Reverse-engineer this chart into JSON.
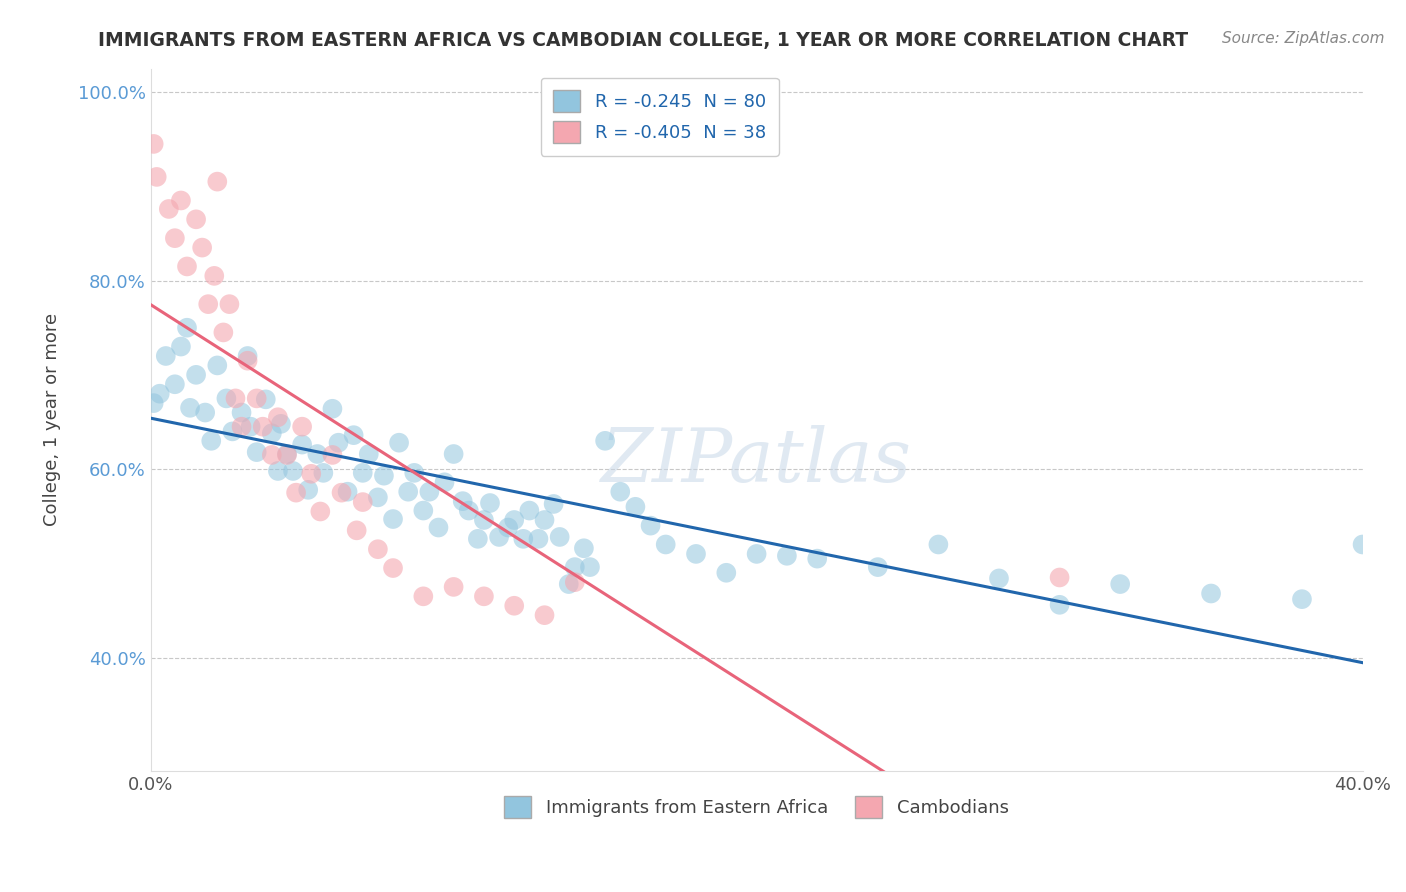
{
  "title": "IMMIGRANTS FROM EASTERN AFRICA VS CAMBODIAN COLLEGE, 1 YEAR OR MORE CORRELATION CHART",
  "source": "Source: ZipAtlas.com",
  "ylabel": "College, 1 year or more",
  "xlim": [
    0.0,
    0.4
  ],
  "ylim": [
    0.28,
    1.025
  ],
  "legend1_label": "R = -0.245  N = 80",
  "legend2_label": "R = -0.405  N = 38",
  "blue_color": "#92c5de",
  "pink_color": "#f4a7b0",
  "blue_line_color": "#2166ac",
  "pink_line_color": "#e8647a",
  "blue_scatter_x": [
    0.001,
    0.003,
    0.005,
    0.008,
    0.01,
    0.012,
    0.013,
    0.015,
    0.018,
    0.02,
    0.022,
    0.025,
    0.027,
    0.03,
    0.032,
    0.033,
    0.035,
    0.038,
    0.04,
    0.042,
    0.043,
    0.045,
    0.047,
    0.05,
    0.052,
    0.055,
    0.057,
    0.06,
    0.062,
    0.065,
    0.067,
    0.07,
    0.072,
    0.075,
    0.077,
    0.08,
    0.082,
    0.085,
    0.087,
    0.09,
    0.092,
    0.095,
    0.097,
    0.1,
    0.103,
    0.105,
    0.108,
    0.11,
    0.112,
    0.115,
    0.118,
    0.12,
    0.123,
    0.125,
    0.128,
    0.13,
    0.133,
    0.135,
    0.138,
    0.14,
    0.143,
    0.145,
    0.15,
    0.155,
    0.16,
    0.165,
    0.17,
    0.18,
    0.19,
    0.2,
    0.21,
    0.22,
    0.24,
    0.26,
    0.28,
    0.3,
    0.32,
    0.35,
    0.38,
    0.4
  ],
  "blue_scatter_y": [
    0.67,
    0.68,
    0.72,
    0.69,
    0.73,
    0.75,
    0.665,
    0.7,
    0.66,
    0.63,
    0.71,
    0.675,
    0.64,
    0.66,
    0.72,
    0.645,
    0.618,
    0.674,
    0.638,
    0.598,
    0.648,
    0.616,
    0.598,
    0.626,
    0.578,
    0.616,
    0.596,
    0.664,
    0.628,
    0.576,
    0.636,
    0.596,
    0.616,
    0.57,
    0.593,
    0.547,
    0.628,
    0.576,
    0.596,
    0.556,
    0.576,
    0.538,
    0.586,
    0.616,
    0.566,
    0.556,
    0.526,
    0.546,
    0.564,
    0.528,
    0.538,
    0.546,
    0.526,
    0.556,
    0.526,
    0.546,
    0.563,
    0.528,
    0.478,
    0.496,
    0.516,
    0.496,
    0.63,
    0.576,
    0.56,
    0.54,
    0.52,
    0.51,
    0.49,
    0.51,
    0.508,
    0.505,
    0.496,
    0.52,
    0.484,
    0.456,
    0.478,
    0.468,
    0.462,
    0.52
  ],
  "pink_scatter_x": [
    0.001,
    0.002,
    0.006,
    0.008,
    0.01,
    0.012,
    0.015,
    0.017,
    0.019,
    0.021,
    0.022,
    0.024,
    0.026,
    0.028,
    0.03,
    0.032,
    0.035,
    0.037,
    0.04,
    0.042,
    0.045,
    0.048,
    0.05,
    0.053,
    0.056,
    0.06,
    0.063,
    0.068,
    0.07,
    0.075,
    0.08,
    0.09,
    0.1,
    0.11,
    0.12,
    0.13,
    0.14,
    0.3
  ],
  "pink_scatter_y": [
    0.945,
    0.91,
    0.876,
    0.845,
    0.885,
    0.815,
    0.865,
    0.835,
    0.775,
    0.805,
    0.905,
    0.745,
    0.775,
    0.675,
    0.645,
    0.715,
    0.675,
    0.645,
    0.615,
    0.655,
    0.615,
    0.575,
    0.645,
    0.595,
    0.555,
    0.615,
    0.575,
    0.535,
    0.565,
    0.515,
    0.495,
    0.465,
    0.475,
    0.465,
    0.455,
    0.445,
    0.48,
    0.485
  ],
  "y_ticks": [
    0.4,
    0.6,
    0.8,
    1.0
  ],
  "y_tick_labels": [
    "40.0%",
    "60.0%",
    "80.0%",
    "100.0%"
  ],
  "x_ticks": [
    0.0,
    0.05,
    0.1,
    0.15,
    0.2,
    0.25,
    0.3,
    0.35,
    0.4
  ],
  "x_tick_labels": [
    "0.0%",
    "",
    "",
    "",
    "",
    "",
    "",
    "",
    "40.0%"
  ]
}
